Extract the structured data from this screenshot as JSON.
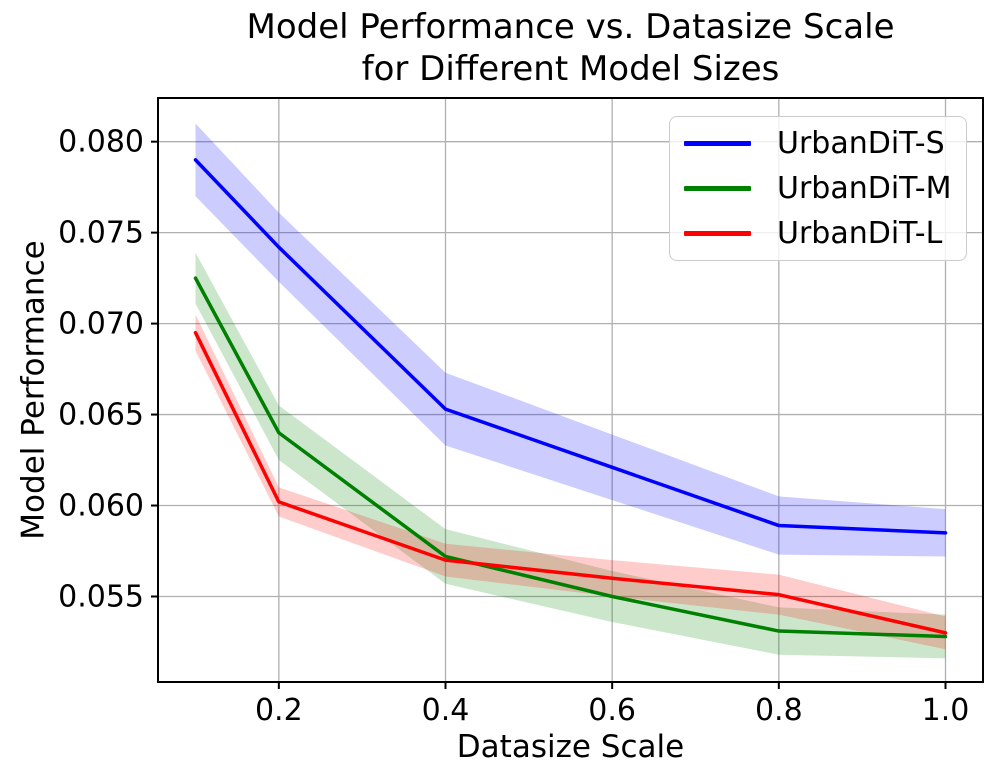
{
  "figure": {
    "title_line1": "Model Performance vs. Datasize Scale",
    "title_line2": "for Different Model Sizes"
  },
  "chart_data": {
    "type": "line",
    "title": "Model Performance vs. Datasize Scale\nfor Different Model Sizes",
    "xlabel": "Datasize Scale",
    "ylabel": "Model Performance",
    "x": [
      0.1,
      0.2,
      0.4,
      0.6,
      0.8,
      1.0
    ],
    "series": [
      {
        "name": "UrbanDiT-S",
        "color": "#0000ff",
        "values": [
          0.079,
          0.0742,
          0.0653,
          0.0621,
          0.0589,
          0.0585
        ],
        "band_halfwidth": [
          0.002,
          0.0019,
          0.002,
          0.0018,
          0.0016,
          0.0013
        ]
      },
      {
        "name": "UrbanDiT-M",
        "color": "#008000",
        "values": [
          0.0725,
          0.064,
          0.0572,
          0.055,
          0.0531,
          0.0528
        ],
        "band_halfwidth": [
          0.0014,
          0.0015,
          0.0015,
          0.0014,
          0.0013,
          0.0012
        ]
      },
      {
        "name": "UrbanDiT-L",
        "color": "#ff0000",
        "values": [
          0.0695,
          0.0602,
          0.057,
          0.056,
          0.0551,
          0.053
        ],
        "band_halfwidth": [
          0.001,
          0.0008,
          0.0009,
          0.001,
          0.0011,
          0.0009
        ]
      }
    ],
    "band_alpha": 0.2,
    "xlim": [
      0.055,
      1.045
    ],
    "ylim": [
      0.0503,
      0.0824
    ],
    "xticks": [
      0.2,
      0.4,
      0.6,
      0.8,
      1.0
    ],
    "yticks": [
      0.055,
      0.06,
      0.065,
      0.07,
      0.075,
      0.08
    ],
    "x_tick_decimals": 1,
    "y_tick_decimals": 3,
    "grid": true,
    "grid_color": "#b0b0b0",
    "axis_color": "#000000",
    "legend_position": "upper right"
  }
}
